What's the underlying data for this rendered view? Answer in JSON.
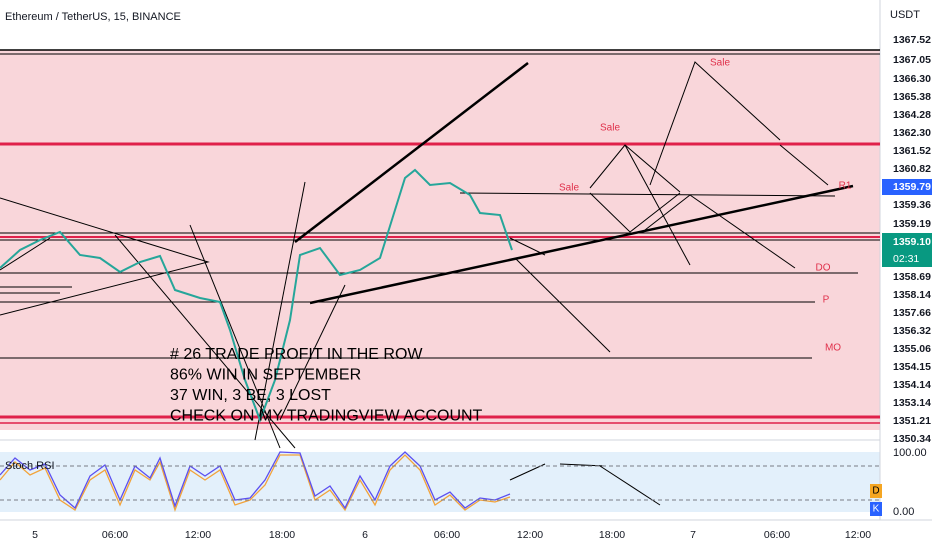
{
  "header": {
    "title": "Ethereum / TetherUS, 15, BINANCE",
    "currency": "USDT"
  },
  "price_axis": {
    "labels": [
      "1367.52",
      "1367.05",
      "1366.30",
      "1365.38",
      "1364.28",
      "1362.30",
      "1361.52",
      "1360.82",
      "1359.79",
      "1359.36",
      "1359.19",
      "1359.10",
      "1358.69",
      "1358.14",
      "1357.66",
      "1356.32",
      "1355.06",
      "1354.15",
      "1354.14",
      "1353.14",
      "1351.21",
      "1350.34"
    ],
    "countdown": "02:31"
  },
  "time_axis": {
    "labels": [
      "5",
      "06:00",
      "12:00",
      "18:00",
      "6",
      "06:00",
      "12:00",
      "18:00",
      "7",
      "06:00",
      "12:00"
    ]
  },
  "annotations": [
    "Sale",
    "Sale",
    "Sale",
    "R1",
    "DO",
    "P",
    "MO"
  ],
  "note": {
    "lines": [
      "# 26 TRADE PROFIT IN THE ROW",
      "86% WIN IN SEPTEMBER",
      "37 WIN, 3 BE, 3 LOST",
      "CHECK ON MY TRADINGVIEW  ACCOUNT"
    ]
  },
  "indicator": {
    "name": "Stoch RSI",
    "axis_labels": [
      "100.00",
      "0.00"
    ],
    "legend": [
      "D",
      "K"
    ]
  }
}
